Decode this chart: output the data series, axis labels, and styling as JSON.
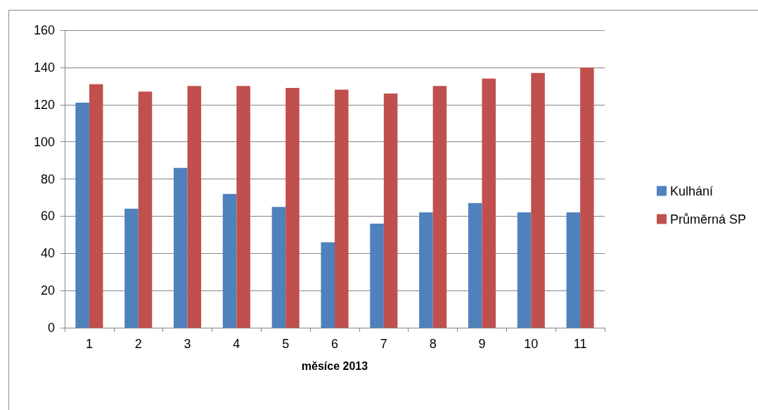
{
  "chart_data": {
    "type": "bar",
    "xlabel": "měsíce 2013",
    "categories": [
      "1",
      "2",
      "3",
      "4",
      "5",
      "6",
      "7",
      "8",
      "9",
      "10",
      "11"
    ],
    "series": [
      {
        "name": "Kulhání",
        "color": "#4f81bd",
        "values": [
          121,
          64,
          86,
          72,
          65,
          46,
          56,
          62,
          67,
          62,
          62
        ]
      },
      {
        "name": "Průměrná SP",
        "color": "#c0504d",
        "values": [
          131,
          127,
          130,
          130,
          129,
          128,
          126,
          130,
          134,
          137,
          140
        ]
      }
    ],
    "ylim": [
      0,
      160
    ],
    "yticks": [
      0,
      20,
      40,
      60,
      80,
      100,
      120,
      140,
      160
    ],
    "grid": "y",
    "legend": "right"
  }
}
